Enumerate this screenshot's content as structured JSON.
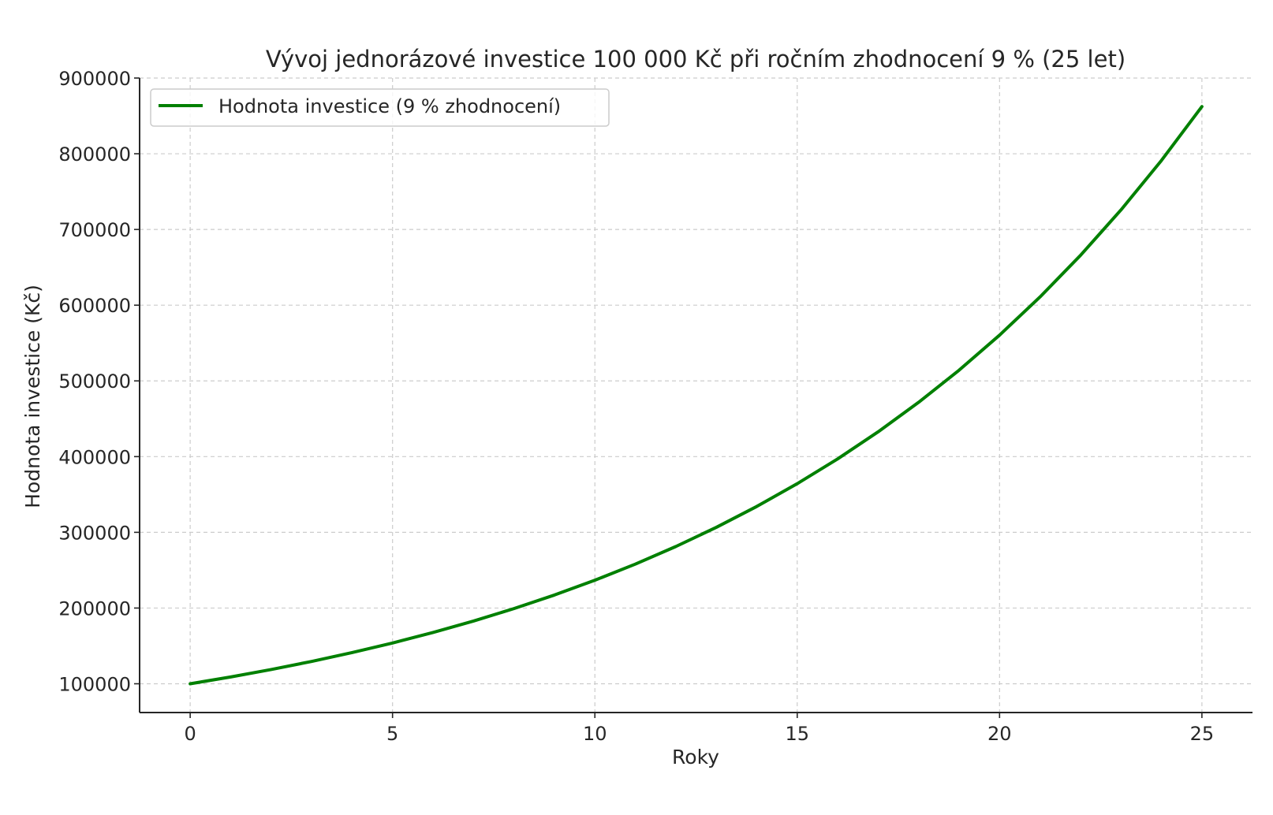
{
  "chart_data": {
    "type": "line",
    "title": "Vývoj jednorázové investice 100 000 Kč při ročním zhodnocení 9 % (25 let)",
    "xlabel": "Roky",
    "ylabel": "Hodnota investice (Kč)",
    "xlim": [
      -1.25,
      26.25
    ],
    "ylim": [
      62000,
      900000
    ],
    "xticks": [
      0,
      5,
      10,
      15,
      20,
      25
    ],
    "yticks": [
      100000,
      200000,
      300000,
      400000,
      500000,
      600000,
      700000,
      800000,
      900000
    ],
    "xtick_labels": [
      "0",
      "5",
      "10",
      "15",
      "20",
      "25"
    ],
    "ytick_labels": [
      "100000",
      "200000",
      "300000",
      "400000",
      "500000",
      "600000",
      "700000",
      "800000",
      "900000"
    ],
    "grid": true,
    "legend_position": "top-left",
    "series": [
      {
        "name": "Hodnota investice (9 % zhodnocení)",
        "color": "#008000",
        "x": [
          0,
          1,
          2,
          3,
          4,
          5,
          6,
          7,
          8,
          9,
          10,
          11,
          12,
          13,
          14,
          15,
          16,
          17,
          18,
          19,
          20,
          21,
          22,
          23,
          24,
          25
        ],
        "y": [
          100000,
          109000,
          118810,
          129503,
          141158,
          153862,
          167710,
          182804,
          199256,
          217189,
          236736,
          258043,
          281266,
          306580,
          334173,
          364248,
          397031,
          432763,
          471712,
          514166,
          560441,
          610881,
          665860,
          725787,
          791108,
          862308
        ]
      }
    ]
  }
}
